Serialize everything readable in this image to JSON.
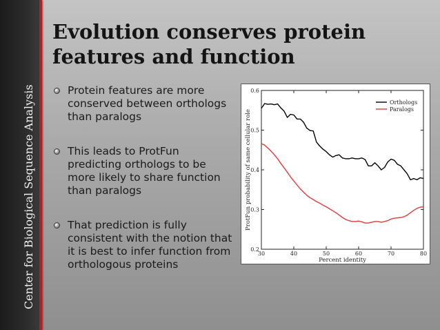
{
  "sidebar": {
    "vertical_title": "Center for Biological Sequence Analysis"
  },
  "slide": {
    "title": "Evolution conserves protein features and function",
    "bullets": [
      "Protein features are more conserved between orthologs than paralogs",
      "This leads to ProtFun predicting orthologs to be more likely to share function than paralogs",
      "That prediction is fully consistent with the notion that it is best to infer function from orthologous proteins"
    ]
  },
  "colors": {
    "accent": "#b32020",
    "orthologs": "#000000",
    "paralogs": "#e03a3a"
  },
  "chart_data": {
    "type": "line",
    "xlabel": "Percent identity",
    "ylabel": "ProtFun probability of same cellular role",
    "xlim": [
      30,
      80
    ],
    "ylim": [
      0.2,
      0.6
    ],
    "x_ticks": [
      30,
      40,
      50,
      60,
      70,
      80
    ],
    "y_ticks": [
      0.2,
      0.3,
      0.4,
      0.5,
      0.6
    ],
    "x_tick_labels": [
      "30",
      "40",
      "50",
      "60",
      "70",
      "80"
    ],
    "y_tick_labels": [
      "0.2",
      "0.3",
      "0.4",
      "0.5",
      "0.6"
    ],
    "legend_position": "top-right",
    "grid": false,
    "series": [
      {
        "name": "Orthologs",
        "color": "#000000",
        "x": [
          30,
          31,
          32,
          33,
          34,
          35,
          36,
          37,
          38,
          39,
          40,
          41,
          42,
          43,
          44,
          45,
          46,
          47,
          48,
          49,
          50,
          51,
          52,
          53,
          54,
          55,
          56,
          57,
          58,
          59,
          60,
          61,
          62,
          63,
          64,
          65,
          66,
          67,
          68,
          69,
          70,
          71,
          72,
          73,
          74,
          75,
          76,
          77,
          78,
          79,
          80
        ],
        "values": [
          0.555,
          0.567,
          0.565,
          0.566,
          0.564,
          0.566,
          0.556,
          0.548,
          0.532,
          0.54,
          0.538,
          0.528,
          0.528,
          0.52,
          0.505,
          0.499,
          0.498,
          0.47,
          0.46,
          0.452,
          0.446,
          0.438,
          0.432,
          0.436,
          0.438,
          0.43,
          0.428,
          0.428,
          0.43,
          0.428,
          0.428,
          0.43,
          0.426,
          0.41,
          0.41,
          0.418,
          0.41,
          0.4,
          0.406,
          0.42,
          0.427,
          0.424,
          0.414,
          0.41,
          0.4,
          0.39,
          0.375,
          0.378,
          0.375,
          0.38,
          0.378
        ]
      },
      {
        "name": "Paralogs",
        "color": "#e03a3a",
        "x": [
          30,
          31,
          32,
          33,
          34,
          35,
          36,
          37,
          38,
          39,
          40,
          41,
          42,
          43,
          44,
          45,
          46,
          47,
          48,
          49,
          50,
          51,
          52,
          53,
          54,
          55,
          56,
          57,
          58,
          59,
          60,
          61,
          62,
          63,
          64,
          65,
          66,
          67,
          68,
          69,
          70,
          71,
          72,
          73,
          74,
          75,
          76,
          77,
          78,
          79,
          80
        ],
        "values": [
          0.466,
          0.462,
          0.455,
          0.447,
          0.438,
          0.428,
          0.416,
          0.405,
          0.394,
          0.382,
          0.372,
          0.362,
          0.352,
          0.344,
          0.336,
          0.33,
          0.325,
          0.32,
          0.316,
          0.311,
          0.307,
          0.302,
          0.297,
          0.292,
          0.286,
          0.28,
          0.275,
          0.272,
          0.27,
          0.27,
          0.271,
          0.269,
          0.266,
          0.266,
          0.268,
          0.27,
          0.27,
          0.268,
          0.27,
          0.272,
          0.276,
          0.278,
          0.279,
          0.28,
          0.282,
          0.286,
          0.292,
          0.298,
          0.303,
          0.306,
          0.307
        ]
      }
    ]
  }
}
